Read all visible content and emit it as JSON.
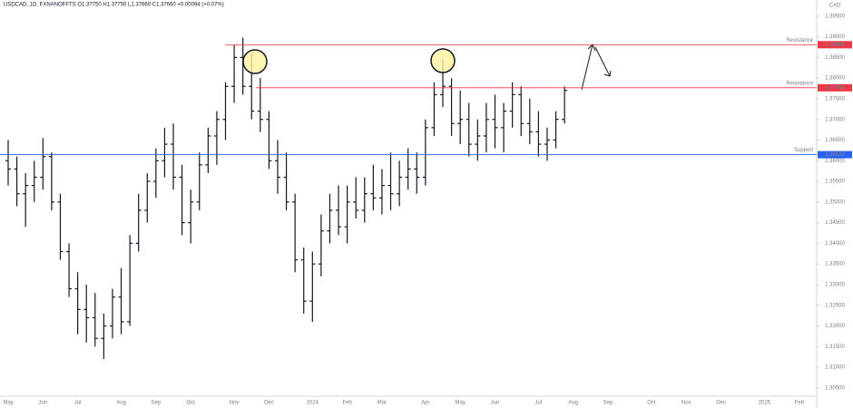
{
  "chart_data": {
    "type": "ohlc",
    "title": "USDCAD, 1D, FXNANOFFTS  O1.37750 H1.37750 L1.37660 C1.37660 +0.00094 (+0.07%)",
    "currency": "CAD",
    "color": "#131722",
    "categories": [
      "May",
      null,
      null,
      null,
      "Jun",
      null,
      null,
      null,
      "Jul",
      null,
      null,
      null,
      null,
      "Aug",
      null,
      null,
      null,
      "Sep",
      null,
      null,
      null,
      "Oct",
      null,
      null,
      null,
      null,
      "Nov",
      null,
      null,
      null,
      "Dec",
      null,
      null,
      null,
      null,
      "2024",
      null,
      null,
      null,
      "Feb",
      null,
      null,
      null,
      "Mar",
      null,
      null,
      null,
      null,
      "Apr",
      null,
      null,
      null,
      "May",
      null,
      null,
      null,
      "Jun",
      null,
      null,
      null,
      null,
      "Jul",
      null,
      null,
      null,
      "Aug",
      null,
      null,
      null,
      "Sep",
      null,
      null,
      null,
      null,
      "Oct",
      null,
      null,
      null,
      "Nov",
      null,
      null,
      null,
      "Dec",
      null,
      null,
      null,
      null,
      "2025",
      null,
      null,
      null,
      "Feb",
      null,
      null
    ],
    "open": [
      1.36,
      1.358,
      1.352,
      1.354,
      1.356,
      1.361,
      1.35,
      1.338,
      1.329,
      1.324,
      1.322,
      1.317,
      1.32,
      1.327,
      1.321,
      1.34,
      1.348,
      1.355,
      1.36,
      1.364,
      1.356,
      1.345,
      1.35,
      1.359,
      1.366,
      1.37,
      1.378,
      1.385,
      1.378,
      1.372,
      1.37,
      1.36,
      1.356,
      1.35,
      1.336,
      1.326,
      1.335,
      1.343,
      1.348,
      1.344,
      1.35,
      1.348,
      1.352,
      1.351,
      1.354,
      1.352,
      1.356,
      1.358,
      1.356,
      1.368,
      1.376,
      1.378,
      1.369,
      1.37,
      1.364,
      1.366,
      1.37,
      1.368,
      1.372,
      1.376,
      1.369,
      1.367,
      1.364,
      1.365,
      1.37,
      null,
      null,
      null,
      null,
      null,
      null,
      null,
      null,
      null,
      null,
      null,
      null,
      null,
      null,
      null,
      null,
      null,
      null,
      null,
      null,
      null,
      null,
      null,
      null,
      null,
      null,
      null,
      null,
      null
    ],
    "high": [
      1.365,
      1.361,
      1.357,
      1.36,
      1.3655,
      1.362,
      1.352,
      1.34,
      1.333,
      1.33,
      1.328,
      1.323,
      1.329,
      1.334,
      1.342,
      1.352,
      1.357,
      1.363,
      1.368,
      1.369,
      1.359,
      1.353,
      1.362,
      1.368,
      1.372,
      1.379,
      1.388,
      1.3898,
      1.386,
      1.38,
      1.372,
      1.365,
      1.362,
      1.352,
      1.339,
      1.338,
      1.347,
      1.352,
      1.354,
      1.354,
      1.356,
      1.356,
      1.359,
      1.358,
      1.362,
      1.36,
      1.363,
      1.362,
      1.37,
      1.379,
      1.3846,
      1.38,
      1.377,
      1.374,
      1.37,
      1.374,
      1.376,
      1.374,
      1.379,
      1.378,
      1.375,
      1.372,
      1.368,
      1.372,
      1.378,
      null,
      null,
      null,
      null,
      null,
      null,
      null,
      null,
      null,
      null,
      null,
      null,
      null,
      null,
      null,
      null,
      null,
      null,
      null,
      null,
      null,
      null,
      null,
      null,
      null,
      null,
      null,
      null,
      null
    ],
    "low": [
      1.354,
      1.349,
      1.344,
      1.35,
      1.353,
      1.348,
      1.336,
      1.327,
      1.318,
      1.316,
      1.315,
      1.312,
      1.317,
      1.318,
      1.32,
      1.338,
      1.345,
      1.351,
      1.356,
      1.353,
      1.342,
      1.34,
      1.348,
      1.357,
      1.359,
      1.365,
      1.374,
      1.376,
      1.37,
      1.367,
      1.358,
      1.352,
      1.348,
      1.333,
      1.323,
      1.321,
      1.332,
      1.34,
      1.342,
      1.34,
      1.346,
      1.345,
      1.348,
      1.347,
      1.348,
      1.349,
      1.353,
      1.352,
      1.354,
      1.366,
      1.373,
      1.366,
      1.364,
      1.361,
      1.36,
      1.362,
      1.363,
      1.362,
      1.368,
      1.366,
      1.364,
      1.361,
      1.36,
      1.363,
      1.369,
      null,
      null,
      null,
      null,
      null,
      null,
      null,
      null,
      null,
      null,
      null,
      null,
      null,
      null,
      null,
      null,
      null,
      null,
      null,
      null,
      null,
      null,
      null,
      null,
      null,
      null,
      null,
      null,
      null
    ],
    "close": [
      1.358,
      1.352,
      1.354,
      1.356,
      1.361,
      1.35,
      1.338,
      1.329,
      1.324,
      1.322,
      1.317,
      1.32,
      1.327,
      1.321,
      1.34,
      1.348,
      1.355,
      1.36,
      1.364,
      1.356,
      1.345,
      1.35,
      1.359,
      1.366,
      1.37,
      1.378,
      1.385,
      1.378,
      1.372,
      1.37,
      1.36,
      1.356,
      1.35,
      1.336,
      1.326,
      1.335,
      1.343,
      1.348,
      1.344,
      1.35,
      1.348,
      1.352,
      1.351,
      1.354,
      1.352,
      1.356,
      1.358,
      1.356,
      1.368,
      1.376,
      1.378,
      1.369,
      1.37,
      1.364,
      1.366,
      1.37,
      1.368,
      1.372,
      1.376,
      1.369,
      1.367,
      1.364,
      1.365,
      1.37,
      1.377,
      null,
      null,
      null,
      null,
      null,
      null,
      null,
      null,
      null,
      null,
      null,
      null,
      null,
      null,
      null,
      null,
      null,
      null,
      null,
      null,
      null,
      null,
      null,
      null,
      null,
      null,
      null,
      null,
      null
    ],
    "ylim": [
      1.30343,
      1.39891
    ],
    "yticks": [
      {
        "value": 1.395,
        "label": "1.39500"
      },
      {
        "value": 1.39,
        "label": "1.39000"
      },
      {
        "value": 1.385,
        "label": "1.38500"
      },
      {
        "value": 1.38,
        "label": "1.38000"
      },
      {
        "value": 1.375,
        "label": "1.37500"
      },
      {
        "value": 1.37,
        "label": "1.37000"
      },
      {
        "value": 1.365,
        "label": "1.36500"
      },
      {
        "value": 1.36,
        "label": "1.36000"
      },
      {
        "value": 1.355,
        "label": "1.35500"
      },
      {
        "value": 1.35,
        "label": "1.35000"
      },
      {
        "value": 1.345,
        "label": "1.34500"
      },
      {
        "value": 1.34,
        "label": "1.34000"
      },
      {
        "value": 1.335,
        "label": "1.33500"
      },
      {
        "value": 1.33,
        "label": "1.33000"
      },
      {
        "value": 1.325,
        "label": "1.32500"
      },
      {
        "value": 1.32,
        "label": "1.32000"
      },
      {
        "value": 1.315,
        "label": "1.31500"
      },
      {
        "value": 1.31,
        "label": "1.31000"
      },
      {
        "value": 1.305,
        "label": "1.30500"
      }
    ],
    "levels": [
      {
        "label": "Resistance",
        "value": 1.38808,
        "color": "#f23645"
      },
      {
        "label": "Resistance",
        "value": 1.37766,
        "color": "#f23645"
      },
      {
        "label": "Support",
        "value": 1.36147,
        "color": "#2962ff"
      }
    ]
  }
}
